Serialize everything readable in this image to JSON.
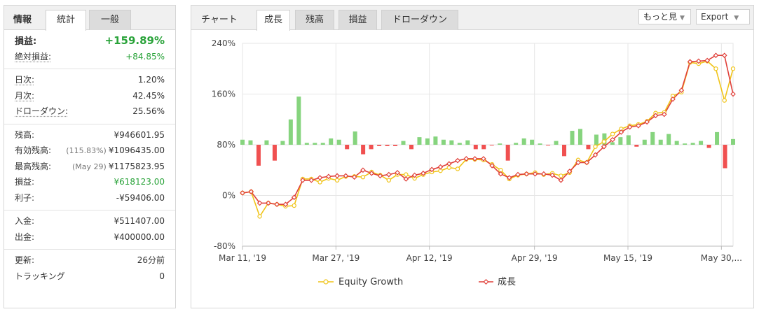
{
  "info": {
    "title": "情報",
    "tabs": [
      "統計",
      "一般"
    ],
    "groups": [
      [
        {
          "label": "損益:",
          "value": "+159.89%",
          "style": "big-green",
          "labelBold": true
        },
        {
          "label": "絶対損益:",
          "value": "+84.85%",
          "style": "green",
          "underline": true
        }
      ],
      [
        {
          "label": "日次:",
          "value": "1.20%",
          "underline": true
        },
        {
          "label": "月次:",
          "value": "42.45%",
          "underline": true
        },
        {
          "label": "ドローダウン:",
          "value": "25.56%",
          "underline": true
        }
      ],
      [
        {
          "label": "残高:",
          "value": "¥946601.95"
        },
        {
          "label": "有効残高:",
          "note": "(115.83%)",
          "value": "¥1096435.00"
        },
        {
          "label": "最高残高:",
          "note": "(May 29)",
          "value": "¥1175823.95"
        },
        {
          "label": "損益:",
          "value": "¥618123.00",
          "style": "green"
        },
        {
          "label": "利子:",
          "value": "-¥59406.00"
        }
      ],
      [
        {
          "label": "入金:",
          "value": "¥511407.00"
        },
        {
          "label": "出金:",
          "value": "¥400000.00"
        }
      ],
      [
        {
          "label": "更新:",
          "value": "26分前"
        },
        {
          "label": "トラッキング",
          "value": "0"
        }
      ]
    ]
  },
  "chart_panel": {
    "title": "チャート",
    "tabs": [
      "成長",
      "残高",
      "損益",
      "ドローダウン"
    ],
    "more_label": "もっと見",
    "export_label": "Export"
  },
  "chart_data": {
    "type": "line",
    "ylim": [
      -80,
      240
    ],
    "y_ticks": [
      "240%",
      "160%",
      "80%",
      "0%",
      "-80%"
    ],
    "y_tick_values": [
      240,
      160,
      80,
      0,
      -80
    ],
    "x_labels": [
      "Mar 11, '19",
      "Mar 27, '19",
      "Apr 12, '19",
      "Apr 29, '19",
      "May 15, '19",
      "May 30,..."
    ],
    "x_label_index": [
      0,
      16,
      32,
      50,
      66,
      82
    ],
    "n": 85,
    "colors": {
      "equity": "#f0c419",
      "growth": "#e0403a",
      "bar_pos": "#86d47e",
      "bar_neg": "#f05050"
    },
    "series": [
      {
        "name": "Equity Growth",
        "values": [
          4,
          6,
          -33,
          -12,
          -14,
          -17,
          -16,
          26,
          26,
          21,
          27,
          24,
          30,
          30,
          29,
          37,
          32,
          24,
          33,
          33,
          27,
          33,
          37,
          39,
          44,
          42,
          57,
          57,
          56,
          49,
          40,
          26,
          32,
          34,
          36,
          33,
          35,
          31,
          36,
          56,
          52,
          77,
          85,
          97,
          105,
          110,
          112,
          117,
          130,
          131,
          157,
          163,
          210,
          208,
          212,
          200,
          150,
          200
        ]
      },
      {
        "name": "成長",
        "values": [
          4,
          6,
          -12,
          -12,
          -14,
          -14,
          -3,
          24,
          24,
          28,
          30,
          31,
          31,
          29,
          40,
          35,
          31,
          33,
          36,
          26,
          32,
          35,
          41,
          45,
          50,
          55,
          58,
          58,
          58,
          47,
          34,
          28,
          33,
          34,
          34,
          34,
          32,
          24,
          38,
          52,
          52,
          64,
          77,
          88,
          100,
          108,
          110,
          116,
          126,
          128,
          152,
          166,
          211,
          212,
          213,
          221,
          221,
          160
        ]
      },
      {
        "name": "bars",
        "values": [
          8,
          7,
          -33,
          7,
          -25,
          6,
          40,
          76,
          3,
          3,
          3,
          10,
          8,
          -7,
          21,
          -15,
          -7,
          -2,
          -2,
          -2,
          6,
          -7,
          12,
          10,
          13,
          8,
          7,
          3,
          7,
          -7,
          -7,
          -1,
          2,
          -25,
          3,
          10,
          8,
          2,
          -1,
          6,
          -18,
          22,
          25,
          -7,
          16,
          18,
          4,
          12,
          15,
          -3,
          8,
          20,
          8,
          17,
          6,
          2,
          3,
          6,
          -5,
          20,
          -37,
          9
        ]
      }
    ],
    "legend": [
      "Equity Growth",
      "成長"
    ]
  }
}
